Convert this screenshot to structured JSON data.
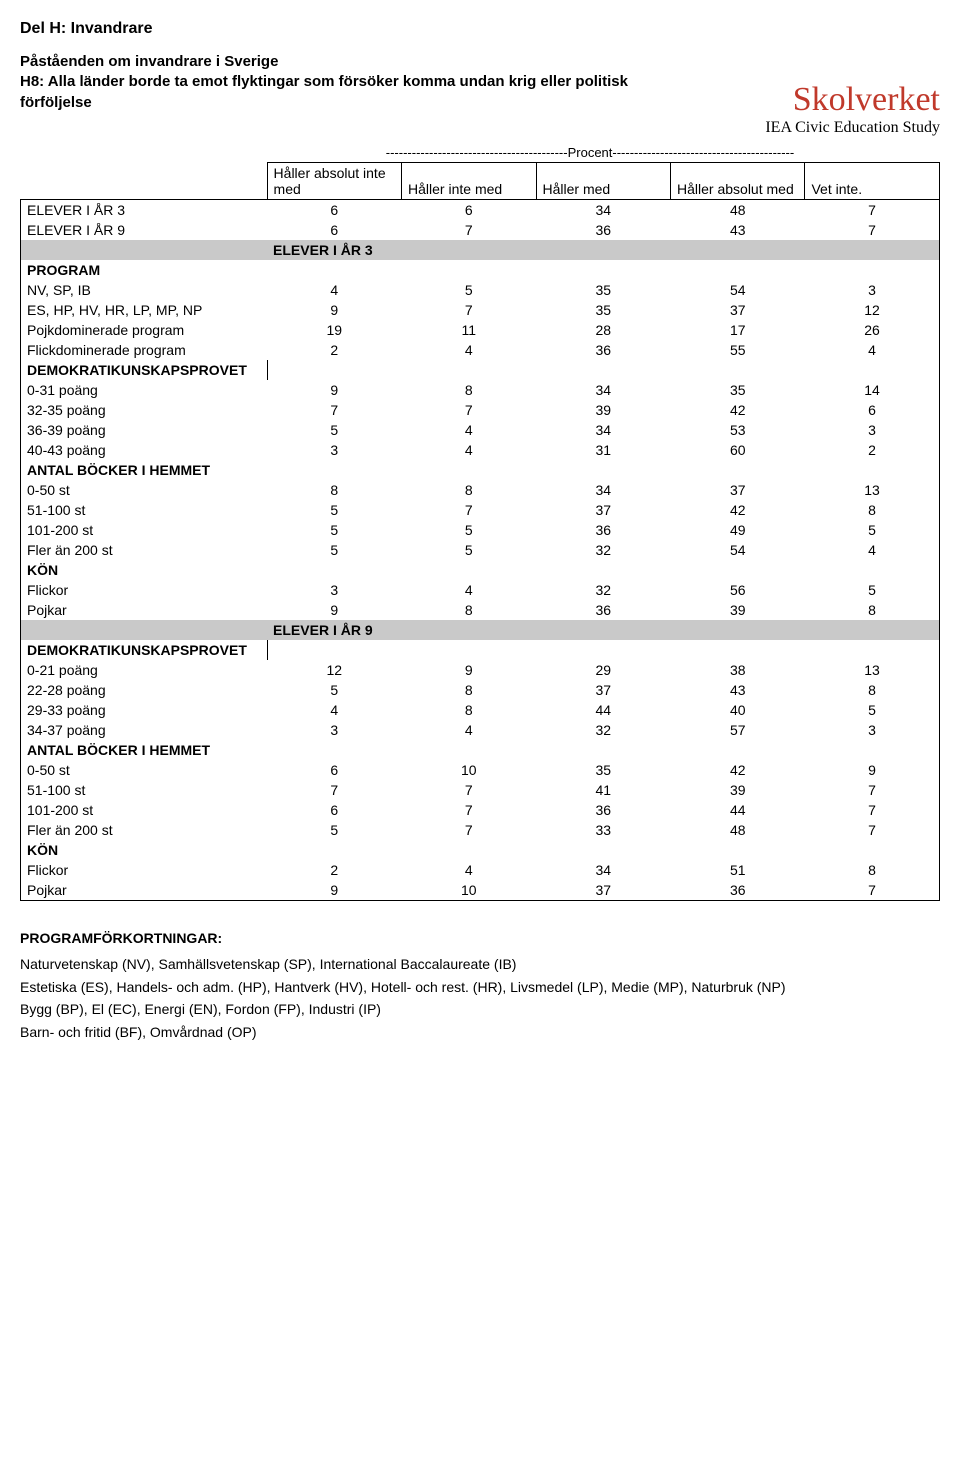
{
  "logo": {
    "brand": "Skolverket",
    "sub": "IEA Civic Education Study"
  },
  "section_title": "Del H: Invandrare",
  "subtitle_line1": "Påståenden om invandrare i Sverige",
  "subtitle_line2": "H8: Alla länder borde ta emot flyktingar som försöker komma undan krig eller politisk förföljelse",
  "procent_rule": "------------------------------------------Procent------------------------------------------",
  "columns": {
    "c1": "Håller absolut inte med",
    "c2": "Håller inte med",
    "c3": "Håller med",
    "c4": "Håller absolut med",
    "c5": "Vet inte."
  },
  "elever3": {
    "label": "ELEVER I ÅR 3",
    "v": [
      "6",
      "6",
      "34",
      "48",
      "7"
    ]
  },
  "elever9": {
    "label": "ELEVER I ÅR 9",
    "v": [
      "6",
      "7",
      "36",
      "43",
      "7"
    ]
  },
  "band3": "ELEVER I ÅR 3",
  "program": {
    "head": "PROGRAM",
    "rows": [
      {
        "l": "NV, SP, IB",
        "v": [
          "4",
          "5",
          "35",
          "54",
          "3"
        ]
      },
      {
        "l": "ES, HP, HV, HR, LP, MP, NP",
        "v": [
          "9",
          "7",
          "35",
          "37",
          "12"
        ]
      },
      {
        "l": "Pojkdominerade program",
        "v": [
          "19",
          "11",
          "28",
          "17",
          "26"
        ]
      },
      {
        "l": "Flickdominerade program",
        "v": [
          "2",
          "4",
          "36",
          "55",
          "4"
        ]
      }
    ]
  },
  "dkp3": {
    "head": "DEMOKRATIKUNSKAPSPROVET",
    "rows": [
      {
        "l": "0-31 poäng",
        "v": [
          "9",
          "8",
          "34",
          "35",
          "14"
        ]
      },
      {
        "l": "32-35 poäng",
        "v": [
          "7",
          "7",
          "39",
          "42",
          "6"
        ]
      },
      {
        "l": "36-39 poäng",
        "v": [
          "5",
          "4",
          "34",
          "53",
          "3"
        ]
      },
      {
        "l": "40-43 poäng",
        "v": [
          "3",
          "4",
          "31",
          "60",
          "2"
        ]
      }
    ]
  },
  "books3": {
    "head": "ANTAL BÖCKER I HEMMET",
    "rows": [
      {
        "l": "0-50 st",
        "v": [
          "8",
          "8",
          "34",
          "37",
          "13"
        ]
      },
      {
        "l": "51-100 st",
        "v": [
          "5",
          "7",
          "37",
          "42",
          "8"
        ]
      },
      {
        "l": "101-200 st",
        "v": [
          "5",
          "5",
          "36",
          "49",
          "5"
        ]
      },
      {
        "l": "Fler än 200 st",
        "v": [
          "5",
          "5",
          "32",
          "54",
          "4"
        ]
      }
    ]
  },
  "kon3": {
    "head": "KÖN",
    "rows": [
      {
        "l": "Flickor",
        "v": [
          "3",
          "4",
          "32",
          "56",
          "5"
        ]
      },
      {
        "l": "Pojkar",
        "v": [
          "9",
          "8",
          "36",
          "39",
          "8"
        ]
      }
    ]
  },
  "band9": "ELEVER I ÅR 9",
  "dkp9": {
    "head": "DEMOKRATIKUNSKAPSPROVET",
    "rows": [
      {
        "l": "0-21 poäng",
        "v": [
          "12",
          "9",
          "29",
          "38",
          "13"
        ]
      },
      {
        "l": "22-28 poäng",
        "v": [
          "5",
          "8",
          "37",
          "43",
          "8"
        ]
      },
      {
        "l": "29-33 poäng",
        "v": [
          "4",
          "8",
          "44",
          "40",
          "5"
        ]
      },
      {
        "l": "34-37 poäng",
        "v": [
          "3",
          "4",
          "32",
          "57",
          "3"
        ]
      }
    ]
  },
  "books9": {
    "head": "ANTAL BÖCKER I HEMMET",
    "rows": [
      {
        "l": "0-50 st",
        "v": [
          "6",
          "10",
          "35",
          "42",
          "9"
        ]
      },
      {
        "l": "51-100 st",
        "v": [
          "7",
          "7",
          "41",
          "39",
          "7"
        ]
      },
      {
        "l": "101-200 st",
        "v": [
          "6",
          "7",
          "36",
          "44",
          "7"
        ]
      },
      {
        "l": "Fler än 200 st",
        "v": [
          "5",
          "7",
          "33",
          "48",
          "7"
        ]
      }
    ]
  },
  "kon9": {
    "head": "KÖN",
    "rows": [
      {
        "l": "Flickor",
        "v": [
          "2",
          "4",
          "34",
          "51",
          "8"
        ]
      },
      {
        "l": "Pojkar",
        "v": [
          "9",
          "10",
          "37",
          "36",
          "7"
        ]
      }
    ]
  },
  "footer": {
    "lead": "PROGRAMFÖRKORTNINGAR:",
    "l1": "Naturvetenskap (NV), Samhällsvetenskap (SP), International Baccalaureate (IB)",
    "l2": "Estetiska (ES), Handels- och adm. (HP), Hantverk (HV), Hotell- och rest. (HR), Livsmedel (LP), Medie (MP), Naturbruk (NP)",
    "l3": "Bygg (BP), El (EC), Energi (EN), Fordon (FP), Industri (IP)",
    "l4": "Barn- och fritid (BF), Omvårdnad (OP)"
  }
}
